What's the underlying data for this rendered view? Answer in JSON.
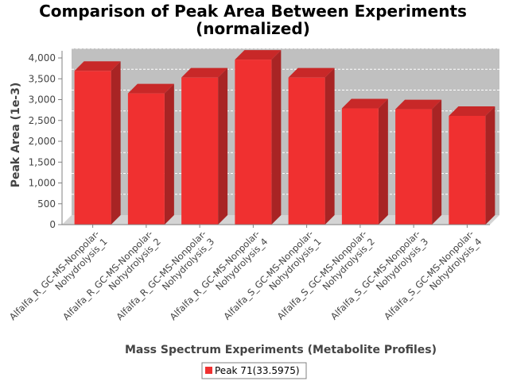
{
  "chart_data": {
    "type": "bar",
    "title_lines": [
      "Comparison of Peak Area Between Experiments",
      "(normalized)"
    ],
    "xlabel": "Mass Spectrum Experiments (Metabolite Profiles)",
    "ylabel": "Peak Area (1e-3)",
    "ylim": [
      0,
      4000
    ],
    "yticks": [
      "0",
      "500",
      "1,000",
      "1,500",
      "2,000",
      "2,500",
      "3,000",
      "3,500",
      "4,000"
    ],
    "categories": [
      [
        "Alfalfa_R_GC-MS-Nonpolar-",
        "Nohydrolysis_1"
      ],
      [
        "Alfalfa_R_GC-MS-Nonpolar-",
        "Nohydrolysis_2"
      ],
      [
        "Alfalfa_R_GC-MS-Nonpolar-",
        "Nohydrolysis_3"
      ],
      [
        "Alfalfa_R_GC-MS-Nonpolar-",
        "Nohydrolysis_4"
      ],
      [
        "Alfalfa_S_GC-MS-Nonpolar-",
        "Nohydrolysis_1"
      ],
      [
        "Alfalfa_S_GC-MS-Nonpolar-",
        "Nohydrolysis_2"
      ],
      [
        "Alfalfa_S_GC-MS-Nonpolar-",
        "Nohydrolysis_3"
      ],
      [
        "Alfalfa_S_GC-MS-Nonpolar-",
        "Nohydrolysis_4"
      ]
    ],
    "series": [
      {
        "name": "Peak 71(33.5975)",
        "values": [
          3690,
          3150,
          3530,
          3960,
          3530,
          2790,
          2770,
          2610
        ]
      }
    ],
    "grid": true,
    "legend_position": "bottom-center",
    "colors": {
      "bar": "#f03030",
      "bar_top": "#c82828",
      "bar_side": "#a82424",
      "plot_bg": "#c0c0c0",
      "gridline": "#ffffff"
    }
  }
}
